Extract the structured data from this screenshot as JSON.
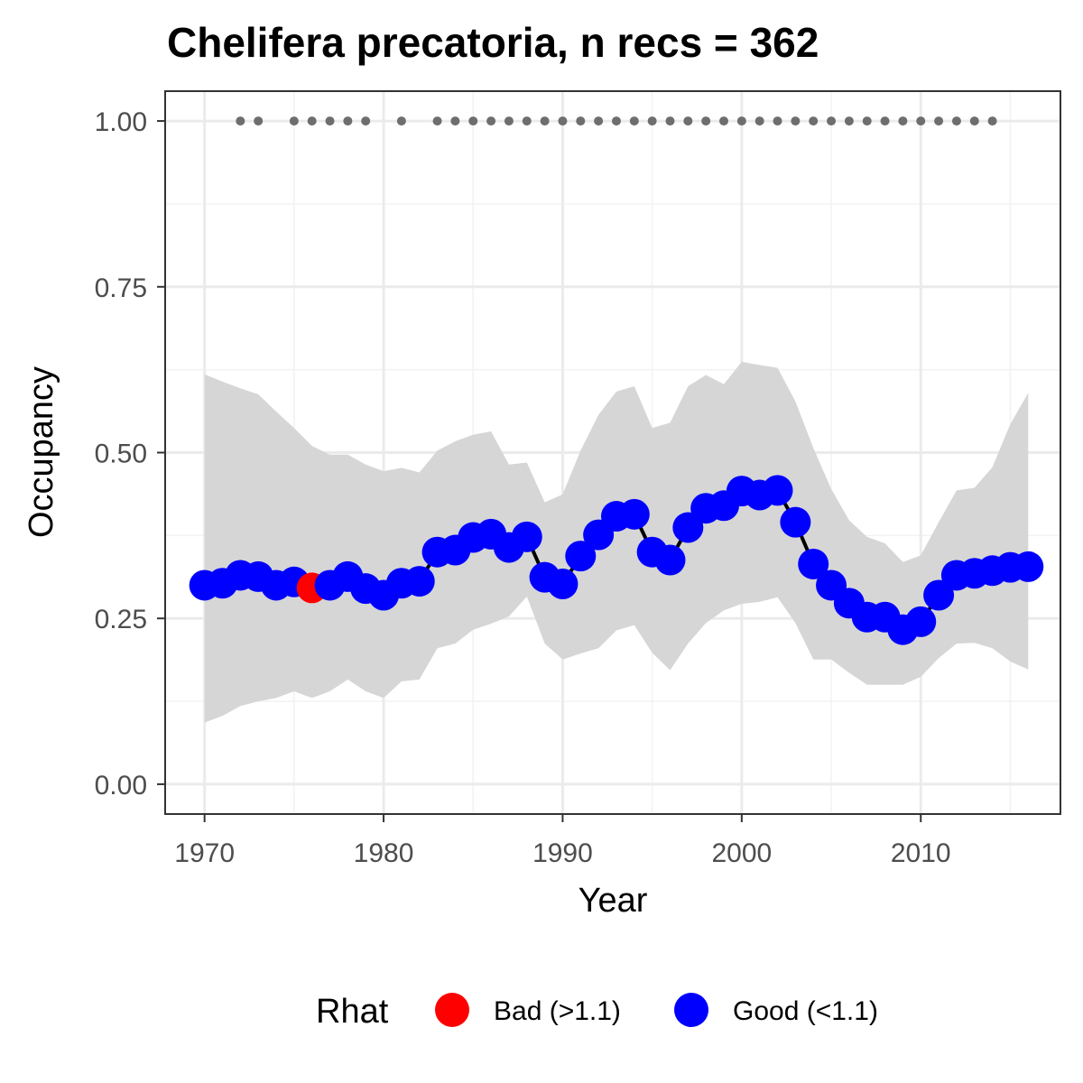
{
  "chart_data": {
    "type": "line",
    "title": "Chelifera precatoria, n recs = 362",
    "xlabel": "Year",
    "ylabel": "Occupancy",
    "xlim": [
      1967.8,
      2017.8
    ],
    "ylim": [
      -0.045,
      1.045
    ],
    "x_ticks": [
      1970,
      1980,
      1990,
      2000,
      2010
    ],
    "x_tick_labels": [
      "1970",
      "1980",
      "1990",
      "2000",
      "2010"
    ],
    "y_ticks": [
      0,
      0.25,
      0.5,
      0.75,
      1
    ],
    "y_tick_labels": [
      "0.00",
      "0.25",
      "0.50",
      "0.75",
      "1.00"
    ],
    "grid": true,
    "legend": {
      "title": "Rhat",
      "position": "bottom",
      "entries": [
        {
          "label": "Bad (>1.1)",
          "color": "#ff0000"
        },
        {
          "label": "Good (<1.1)",
          "color": "#0000ff"
        }
      ]
    },
    "colors": {
      "good": "#0000ff",
      "bad": "#ff0000",
      "ribbon": "#d6d6d6",
      "line": "#000000",
      "record_dots": "#6e6e6e"
    },
    "series": [
      {
        "x": [
          1970,
          1971,
          1972,
          1973,
          1974,
          1975,
          1976,
          1977,
          1978,
          1979,
          1980,
          1981,
          1982,
          1983,
          1984,
          1985,
          1986,
          1987,
          1988,
          1989,
          1990,
          1991,
          1992,
          1993,
          1994,
          1995,
          1996,
          1997,
          1998,
          1999,
          2000,
          2001,
          2002,
          2003,
          2004,
          2005,
          2006,
          2007,
          2008,
          2009,
          2010,
          2011,
          2012,
          2013,
          2014,
          2015,
          2016
        ],
        "y": [
          0.3,
          0.303,
          0.315,
          0.313,
          0.3,
          0.305,
          0.296,
          0.3,
          0.313,
          0.295,
          0.285,
          0.303,
          0.306,
          0.35,
          0.353,
          0.372,
          0.377,
          0.357,
          0.373,
          0.312,
          0.302,
          0.344,
          0.376,
          0.404,
          0.407,
          0.35,
          0.338,
          0.387,
          0.416,
          0.42,
          0.442,
          0.436,
          0.443,
          0.395,
          0.332,
          0.3,
          0.273,
          0.252,
          0.252,
          0.233,
          0.245,
          0.285,
          0.315,
          0.318,
          0.322,
          0.327,
          0.328
        ],
        "lower": [
          0.093,
          0.103,
          0.118,
          0.125,
          0.13,
          0.14,
          0.13,
          0.14,
          0.158,
          0.14,
          0.13,
          0.155,
          0.158,
          0.205,
          0.212,
          0.233,
          0.242,
          0.253,
          0.283,
          0.212,
          0.188,
          0.197,
          0.205,
          0.232,
          0.24,
          0.198,
          0.172,
          0.212,
          0.243,
          0.262,
          0.272,
          0.275,
          0.282,
          0.243,
          0.188,
          0.188,
          0.168,
          0.15,
          0.15,
          0.15,
          0.162,
          0.19,
          0.212,
          0.213,
          0.205,
          0.185,
          0.173
        ],
        "upper": [
          0.618,
          0.607,
          0.597,
          0.588,
          0.562,
          0.537,
          0.51,
          0.497,
          0.497,
          0.482,
          0.472,
          0.477,
          0.47,
          0.503,
          0.517,
          0.527,
          0.532,
          0.482,
          0.485,
          0.425,
          0.437,
          0.503,
          0.557,
          0.592,
          0.6,
          0.537,
          0.545,
          0.6,
          0.617,
          0.603,
          0.637,
          0.632,
          0.628,
          0.577,
          0.507,
          0.445,
          0.398,
          0.373,
          0.363,
          0.335,
          0.345,
          0.395,
          0.443,
          0.447,
          0.478,
          0.543,
          0.59
        ],
        "rhat_status": [
          "good",
          "good",
          "good",
          "good",
          "good",
          "good",
          "bad",
          "good",
          "good",
          "good",
          "good",
          "good",
          "good",
          "good",
          "good",
          "good",
          "good",
          "good",
          "good",
          "good",
          "good",
          "good",
          "good",
          "good",
          "good",
          "good",
          "good",
          "good",
          "good",
          "good",
          "good",
          "good",
          "good",
          "good",
          "good",
          "good",
          "good",
          "good",
          "good",
          "good",
          "good",
          "good",
          "good",
          "good",
          "good",
          "good",
          "good"
        ]
      }
    ],
    "record_years": {
      "y": 1.0,
      "x": [
        1972,
        1973,
        1975,
        1976,
        1977,
        1978,
        1979,
        1981,
        1983,
        1984,
        1985,
        1986,
        1987,
        1988,
        1989,
        1990,
        1991,
        1992,
        1993,
        1994,
        1995,
        1996,
        1997,
        1998,
        1999,
        2000,
        2001,
        2002,
        2003,
        2004,
        2005,
        2006,
        2007,
        2008,
        2009,
        2010,
        2011,
        2012,
        2013,
        2014
      ]
    }
  }
}
